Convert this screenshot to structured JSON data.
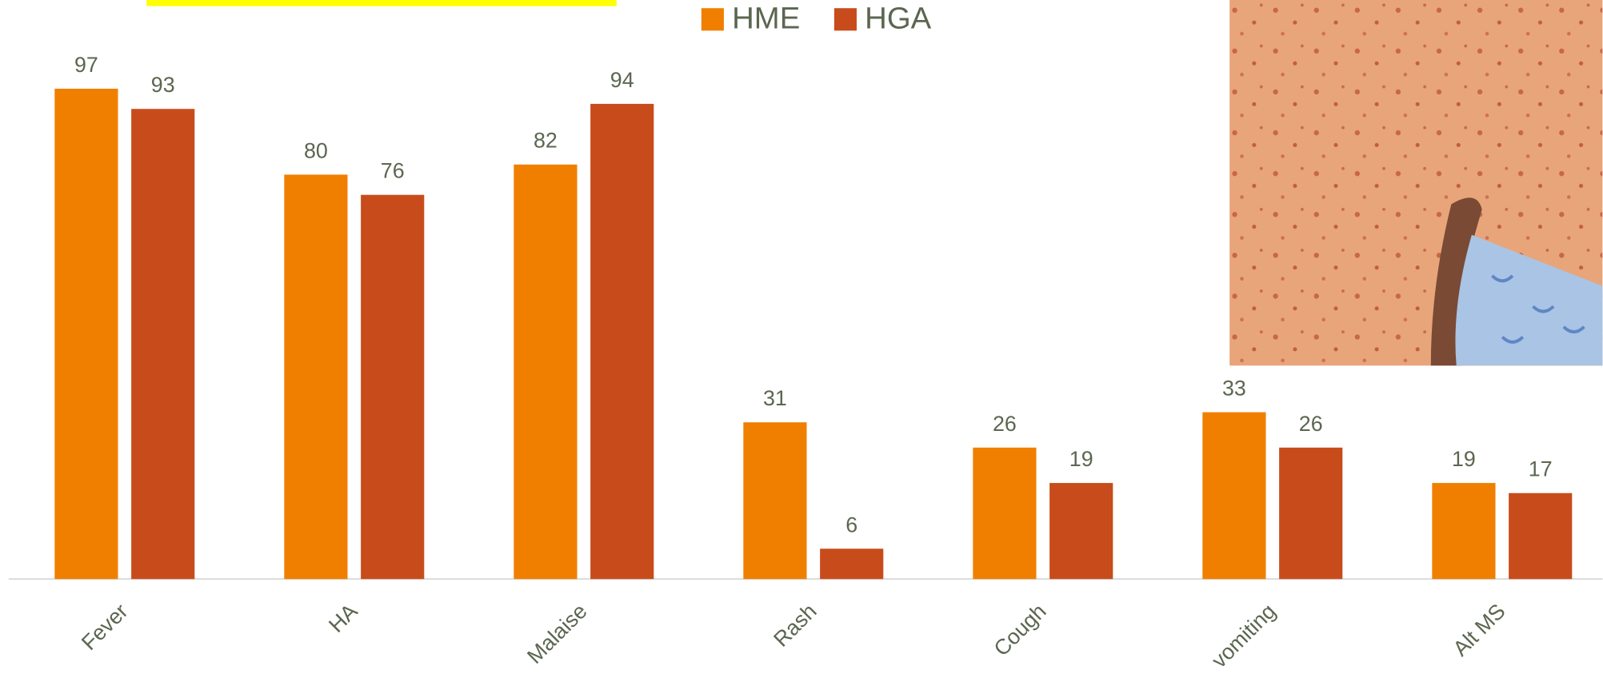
{
  "chart_data": {
    "type": "bar",
    "categories": [
      "Fever",
      "HA",
      "Malaise",
      "Rash",
      "Cough",
      "vomiting",
      "Alt MS"
    ],
    "series": [
      {
        "name": "HME",
        "color": "#f07f00",
        "values": [
          97,
          80,
          82,
          31,
          26,
          33,
          19
        ]
      },
      {
        "name": "HGA",
        "color": "#c84c1b",
        "values": [
          93,
          76,
          94,
          6,
          19,
          26,
          17
        ]
      }
    ],
    "ylim": [
      0,
      100
    ]
  }
}
